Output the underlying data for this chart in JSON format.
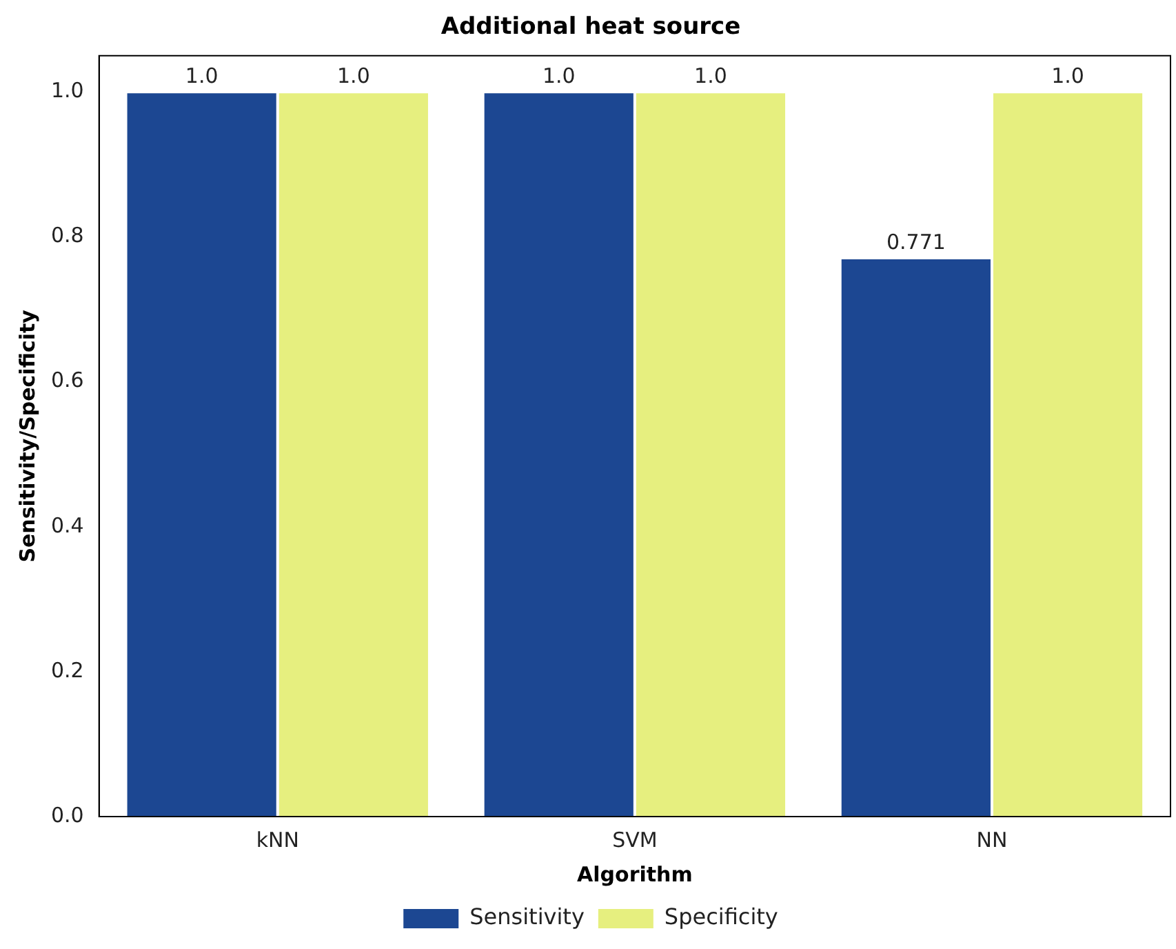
{
  "chart_data": {
    "type": "bar",
    "title": "Additional heat source",
    "xlabel": "Algorithm",
    "ylabel": "Sensitivity/Specificity",
    "categories": [
      "kNN",
      "SVM",
      "NN"
    ],
    "series": [
      {
        "name": "Sensitivity",
        "color": "#1c4792",
        "values": [
          1.0,
          1.0,
          0.771
        ],
        "value_labels": [
          "1.0",
          "1.0",
          "0.771"
        ]
      },
      {
        "name": "Specificity",
        "color": "#e6ef7f",
        "values": [
          1.0,
          1.0,
          1.0
        ],
        "value_labels": [
          "1.0",
          "1.0",
          "1.0"
        ]
      }
    ],
    "ylim": [
      0,
      1.05
    ],
    "yticks": [
      {
        "value": 0,
        "label": "0.0"
      },
      {
        "value": 0.2,
        "label": "0.2"
      },
      {
        "value": 0.4,
        "label": "0.4"
      },
      {
        "value": 0.6,
        "label": "0.6"
      },
      {
        "value": 0.8,
        "label": "0.8"
      },
      {
        "value": 1.0,
        "label": "1.0"
      }
    ],
    "grid": false,
    "legend": "bottom"
  }
}
